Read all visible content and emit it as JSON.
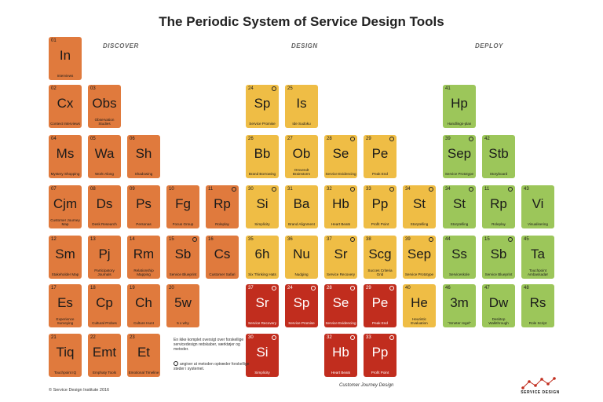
{
  "title": "The Periodic System of Service Design Tools",
  "sections": {
    "discover": "DISCOVER",
    "design": "DESIGN",
    "deploy": "DEPLOY"
  },
  "colors": {
    "discover": "#e07a3d",
    "design": "#efbd45",
    "deploy": "#9cc65a",
    "journey": "#c12d1e"
  },
  "tiles": [
    {
      "num": "01",
      "sym": "In",
      "name": "Interviews",
      "color": "orange"
    },
    {
      "num": "02",
      "sym": "Cx",
      "name": "Context Interviews",
      "color": "orange"
    },
    {
      "num": "03",
      "sym": "Obs",
      "name": "Observation Studies",
      "color": "orange"
    },
    {
      "num": "04",
      "sym": "Ms",
      "name": "Mystery Shopping",
      "color": "orange"
    },
    {
      "num": "05",
      "sym": "Wa",
      "name": "Work-Along",
      "color": "orange"
    },
    {
      "num": "06",
      "sym": "Sh",
      "name": "Shadowing",
      "color": "orange"
    },
    {
      "num": "07",
      "sym": "Cjm",
      "name": "Customer Journey Map",
      "color": "orange"
    },
    {
      "num": "08",
      "sym": "Ds",
      "name": "Desk Research",
      "color": "orange"
    },
    {
      "num": "09",
      "sym": "Ps",
      "name": "Personas",
      "color": "orange"
    },
    {
      "num": "10",
      "sym": "Fg",
      "name": "Focus Group",
      "color": "orange"
    },
    {
      "num": "11",
      "sym": "Rp",
      "name": "Roleplay",
      "color": "orange",
      "mark": true
    },
    {
      "num": "12",
      "sym": "Sm",
      "name": "Stakeholder Map",
      "color": "orange"
    },
    {
      "num": "13",
      "sym": "Pj",
      "name": "Participatory Journals",
      "color": "orange"
    },
    {
      "num": "14",
      "sym": "Rm",
      "name": "Relationship Mapping",
      "color": "orange"
    },
    {
      "num": "15",
      "sym": "Sb",
      "name": "Service Blueprint",
      "color": "orange",
      "mark": true
    },
    {
      "num": "16",
      "sym": "Cs",
      "name": "Customer Safari",
      "color": "orange"
    },
    {
      "num": "17",
      "sym": "Es",
      "name": "Experience Surveying",
      "color": "orange"
    },
    {
      "num": "18",
      "sym": "Cp",
      "name": "Cultural Probes",
      "color": "orange"
    },
    {
      "num": "19",
      "sym": "Ch",
      "name": "Culture Hunt",
      "color": "orange"
    },
    {
      "num": "20",
      "sym": "5w",
      "name": "5 x why",
      "color": "orange"
    },
    {
      "num": "21",
      "sym": "Tiq",
      "name": "Touchpoint IQ",
      "color": "orange"
    },
    {
      "num": "22",
      "sym": "Emt",
      "name": "Emphaty Tools",
      "color": "orange"
    },
    {
      "num": "23",
      "sym": "Et",
      "name": "Emotional Timeline",
      "color": "orange"
    },
    {
      "num": "24",
      "sym": "Sp",
      "name": "Service Promise",
      "color": "yellow",
      "mark": true
    },
    {
      "num": "25",
      "sym": "Is",
      "name": "Ide Sudoku",
      "color": "yellow"
    },
    {
      "num": "26",
      "sym": "Bb",
      "name": "Brand Borrowing",
      "color": "yellow"
    },
    {
      "num": "27",
      "sym": "Ob",
      "name": "Omvendt Brainstorm",
      "color": "yellow"
    },
    {
      "num": "28",
      "sym": "Se",
      "name": "Service Evidencing",
      "color": "yellow",
      "mark": true
    },
    {
      "num": "29",
      "sym": "Pe",
      "name": "Peak End",
      "color": "yellow",
      "mark": true
    },
    {
      "num": "30",
      "sym": "Si",
      "name": "Simplicity",
      "color": "yellow",
      "mark": true
    },
    {
      "num": "31",
      "sym": "Ba",
      "name": "Brand Alignment",
      "color": "yellow"
    },
    {
      "num": "32",
      "sym": "Hb",
      "name": "Heart Beats",
      "color": "yellow",
      "mark": true
    },
    {
      "num": "33",
      "sym": "Pp",
      "name": "Profit Point",
      "color": "yellow",
      "mark": true
    },
    {
      "num": "34",
      "sym": "St",
      "name": "Storytelling",
      "color": "yellow",
      "mark": true
    },
    {
      "num": "35",
      "sym": "6h",
      "name": "Six Thinking Hats",
      "color": "yellow"
    },
    {
      "num": "36",
      "sym": "Nu",
      "name": "Nudging",
      "color": "yellow"
    },
    {
      "num": "37",
      "sym": "Sr",
      "name": "Service Recovery",
      "color": "yellow",
      "mark": true
    },
    {
      "num": "38",
      "sym": "Scg",
      "name": "Succes Criteria Grid",
      "color": "yellow"
    },
    {
      "num": "39",
      "sym": "Sep",
      "name": "Service Prototype",
      "color": "yellow",
      "mark": true
    },
    {
      "num": "37",
      "sym": "Sr",
      "name": "Service Recovery",
      "color": "red",
      "mark": true
    },
    {
      "num": "24",
      "sym": "Sp",
      "name": "Service Promise",
      "color": "red",
      "mark": true
    },
    {
      "num": "28",
      "sym": "Se",
      "name": "Service Evidencing",
      "color": "red",
      "mark": true
    },
    {
      "num": "29",
      "sym": "Pe",
      "name": "Peak End",
      "color": "red",
      "mark": true
    },
    {
      "num": "40",
      "sym": "He",
      "name": "Heuristic Evaluation",
      "color": "yellow"
    },
    {
      "num": "30",
      "sym": "Si",
      "name": "Simplicity",
      "color": "red",
      "mark": true
    },
    {
      "num": "32",
      "sym": "Hb",
      "name": "Heart Beats",
      "color": "red",
      "mark": true
    },
    {
      "num": "33",
      "sym": "Pp",
      "name": "Profit Point",
      "color": "red",
      "mark": true
    },
    {
      "num": "41",
      "sym": "Hp",
      "name": "Handlings-plan",
      "color": "green"
    },
    {
      "num": "39",
      "sym": "Sep",
      "name": "Service Prototype",
      "color": "green",
      "mark": true
    },
    {
      "num": "42",
      "sym": "Stb",
      "name": "Storyboard",
      "color": "green"
    },
    {
      "num": "34",
      "sym": "St",
      "name": "Storytelling",
      "color": "green",
      "mark": true
    },
    {
      "num": "11",
      "sym": "Rp",
      "name": "Roleplay",
      "color": "green",
      "mark": true
    },
    {
      "num": "43",
      "sym": "Vi",
      "name": "Visualisering",
      "color": "green"
    },
    {
      "num": "44",
      "sym": "Ss",
      "name": "Serviceskole",
      "color": "green"
    },
    {
      "num": "15",
      "sym": "Sb",
      "name": "Service Blueprint",
      "color": "green",
      "mark": true
    },
    {
      "num": "45",
      "sym": "Ta",
      "name": "Touchpoint Ambassadør",
      "color": "green"
    },
    {
      "num": "46",
      "sym": "3m",
      "name": "\"Smeter regel\"",
      "color": "green"
    },
    {
      "num": "47",
      "sym": "Dw",
      "name": "Desktop Walkthrough",
      "color": "green"
    },
    {
      "num": "48",
      "sym": "Rs",
      "name": "Role Script",
      "color": "green"
    }
  ],
  "legend": {
    "line1": "En ikke komplet oversigt over forskellige servicedesign redskaber, værktøjer og metoder.",
    "line2": "angiver at metoden optræder forskellige steder i systemet."
  },
  "journey_label": "Customer Journey Design",
  "copyright": "© Service Design Institute 2016",
  "logo_text": "SERVICE DESIGN"
}
